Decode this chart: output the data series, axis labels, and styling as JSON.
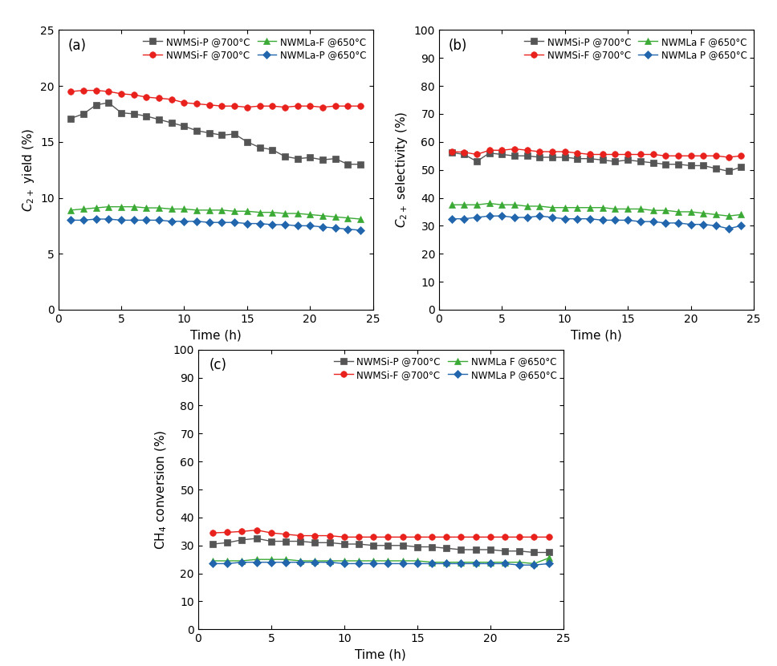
{
  "time": [
    1,
    2,
    3,
    4,
    5,
    6,
    7,
    8,
    9,
    10,
    11,
    12,
    13,
    14,
    15,
    16,
    17,
    18,
    19,
    20,
    21,
    22,
    23,
    24
  ],
  "yield_NWMSiP": [
    17.1,
    17.5,
    18.3,
    18.5,
    17.6,
    17.5,
    17.3,
    17.0,
    16.7,
    16.4,
    16.0,
    15.8,
    15.6,
    15.7,
    15.0,
    14.5,
    14.3,
    13.7,
    13.5,
    13.6,
    13.4,
    13.5,
    13.0,
    13.0
  ],
  "yield_NWMSiF": [
    19.5,
    19.6,
    19.6,
    19.5,
    19.3,
    19.2,
    19.0,
    18.9,
    18.8,
    18.5,
    18.4,
    18.3,
    18.2,
    18.2,
    18.1,
    18.2,
    18.2,
    18.1,
    18.2,
    18.2,
    18.1,
    18.2,
    18.2,
    18.2
  ],
  "yield_NWMLaF": [
    8.9,
    9.0,
    9.1,
    9.2,
    9.2,
    9.2,
    9.1,
    9.1,
    9.0,
    9.0,
    8.9,
    8.9,
    8.9,
    8.8,
    8.8,
    8.7,
    8.7,
    8.6,
    8.6,
    8.5,
    8.4,
    8.3,
    8.2,
    8.1
  ],
  "yield_NWMLaP": [
    8.0,
    8.0,
    8.1,
    8.1,
    8.0,
    8.0,
    8.0,
    8.0,
    7.9,
    7.9,
    7.9,
    7.8,
    7.8,
    7.8,
    7.7,
    7.7,
    7.6,
    7.6,
    7.5,
    7.5,
    7.4,
    7.3,
    7.2,
    7.1
  ],
  "sel_NWMSiP": [
    56.2,
    55.5,
    53.0,
    56.0,
    55.5,
    55.0,
    55.0,
    54.5,
    54.5,
    54.5,
    54.0,
    54.0,
    53.5,
    53.0,
    53.5,
    53.0,
    52.5,
    52.0,
    52.0,
    51.5,
    51.5,
    50.5,
    49.5,
    51.0
  ],
  "sel_NWMSiF": [
    56.5,
    56.3,
    55.5,
    57.0,
    57.0,
    57.5,
    57.0,
    56.5,
    56.5,
    56.5,
    56.0,
    55.5,
    55.5,
    55.5,
    55.5,
    55.5,
    55.5,
    55.0,
    55.0,
    55.0,
    55.0,
    55.0,
    54.5,
    55.0
  ],
  "sel_NWMLaF": [
    37.5,
    37.5,
    37.5,
    38.0,
    37.5,
    37.5,
    37.0,
    37.0,
    36.5,
    36.5,
    36.5,
    36.5,
    36.5,
    36.0,
    36.0,
    36.0,
    35.5,
    35.5,
    35.0,
    35.0,
    34.5,
    34.0,
    33.5,
    34.0
  ],
  "sel_NWMLaP": [
    32.5,
    32.5,
    33.0,
    33.5,
    33.5,
    33.0,
    33.0,
    33.5,
    33.0,
    32.5,
    32.5,
    32.5,
    32.0,
    32.0,
    32.0,
    31.5,
    31.5,
    31.0,
    31.0,
    30.5,
    30.5,
    30.0,
    29.0,
    30.0
  ],
  "conv_NWMSiP": [
    30.5,
    31.0,
    32.0,
    32.5,
    31.5,
    31.5,
    31.5,
    31.0,
    31.0,
    30.5,
    30.5,
    30.0,
    30.0,
    30.0,
    29.5,
    29.5,
    29.0,
    28.5,
    28.5,
    28.5,
    28.0,
    28.0,
    27.5,
    27.5
  ],
  "conv_NWMSiF": [
    34.5,
    34.7,
    35.0,
    35.5,
    34.5,
    34.0,
    33.5,
    33.5,
    33.5,
    33.0,
    33.0,
    33.0,
    33.0,
    33.0,
    33.0,
    33.0,
    33.0,
    33.0,
    33.0,
    33.0,
    33.0,
    33.0,
    33.0,
    33.0
  ],
  "conv_NWMLaF": [
    24.5,
    24.5,
    24.5,
    25.0,
    25.0,
    25.0,
    24.5,
    24.5,
    24.5,
    24.5,
    24.5,
    24.5,
    24.5,
    24.5,
    24.5,
    24.0,
    24.0,
    24.0,
    24.0,
    24.0,
    24.0,
    24.0,
    23.5,
    25.5
  ],
  "conv_NWMLaP": [
    23.5,
    23.5,
    24.0,
    24.0,
    24.0,
    24.0,
    24.0,
    24.0,
    24.0,
    23.5,
    23.5,
    23.5,
    23.5,
    23.5,
    23.5,
    23.5,
    23.5,
    23.5,
    23.5,
    23.5,
    23.5,
    23.0,
    23.0,
    23.5
  ],
  "legend_a": [
    {
      "label": "NWMSi-P @700°C",
      "color": "#555555",
      "marker": "s"
    },
    {
      "label": "NWMSi-F @700°C",
      "color": "#e8211d",
      "marker": "o"
    },
    {
      "label": "NWMLa-F @650°C",
      "color": "#3aaa35",
      "marker": "^"
    },
    {
      "label": "NWMLa-P @650°C",
      "color": "#2166ac",
      "marker": "D"
    }
  ],
  "legend_bc": [
    {
      "label": "NWMSi-P @700°C",
      "color": "#555555",
      "marker": "s"
    },
    {
      "label": "NWMSi-F @700°C",
      "color": "#e8211d",
      "marker": "o"
    },
    {
      "label": "NWMLa F @650°C",
      "color": "#3aaa35",
      "marker": "^"
    },
    {
      "label": "NWMLa P @650°C",
      "color": "#2166ac",
      "marker": "D"
    }
  ]
}
